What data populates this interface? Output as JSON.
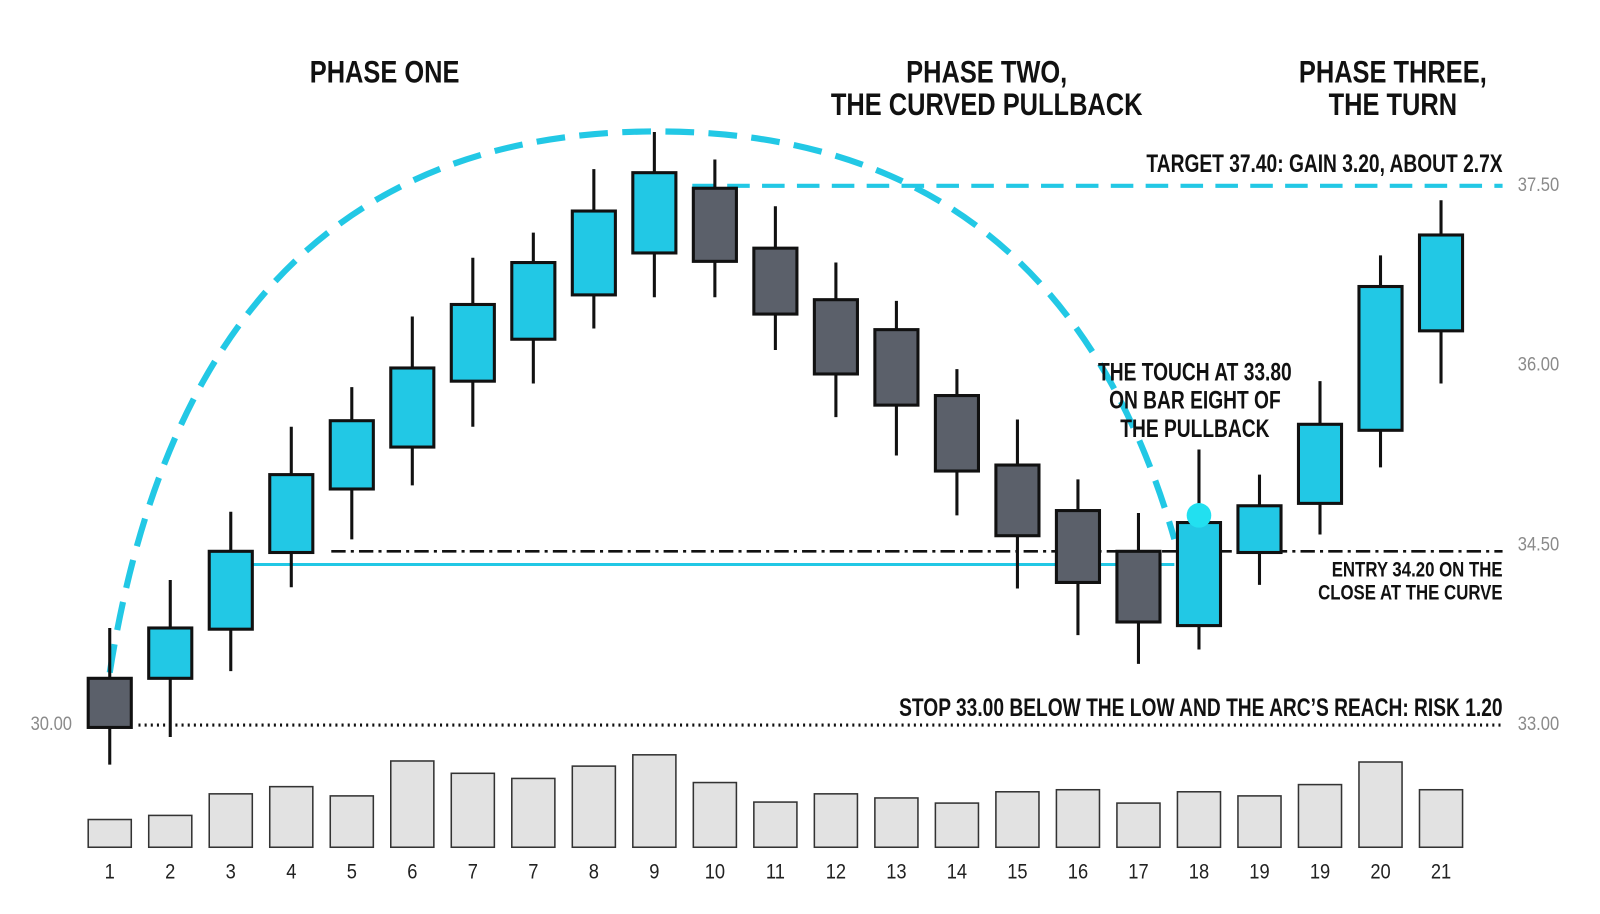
{
  "chart_data": {
    "type": "candlestick",
    "categories": [
      "1",
      "2",
      "3",
      "4",
      "5",
      "6",
      "7",
      "7",
      "8",
      "9",
      "10",
      "11",
      "12",
      "13",
      "14",
      "15",
      "16",
      "17",
      "18",
      "19",
      "19",
      "20",
      "21"
    ],
    "open": [
      33.39,
      33.39,
      33.8,
      34.44,
      34.97,
      35.32,
      35.87,
      36.22,
      36.59,
      36.94,
      37.48,
      36.98,
      36.55,
      36.3,
      35.75,
      35.17,
      34.79,
      34.45,
      33.83,
      34.44,
      34.85,
      35.46,
      36.29
    ],
    "high": [
      33.81,
      34.21,
      34.78,
      35.49,
      35.82,
      36.41,
      36.9,
      37.11,
      37.64,
      37.95,
      37.72,
      37.33,
      36.86,
      36.54,
      35.97,
      35.55,
      35.05,
      34.77,
      35.3,
      35.09,
      35.87,
      36.92,
      37.38
    ],
    "low": [
      32.67,
      32.9,
      33.45,
      34.15,
      34.55,
      35.0,
      35.49,
      35.85,
      36.31,
      36.57,
      36.57,
      36.13,
      35.57,
      35.25,
      34.75,
      34.14,
      33.75,
      33.51,
      33.63,
      34.17,
      34.59,
      35.15,
      35.85
    ],
    "close": [
      32.98,
      33.81,
      34.45,
      35.09,
      35.54,
      35.98,
      36.51,
      36.86,
      37.29,
      37.61,
      36.87,
      36.43,
      35.93,
      35.67,
      35.12,
      34.58,
      34.19,
      33.86,
      34.69,
      34.83,
      35.51,
      36.66,
      37.09
    ],
    "volume": [
      27,
      31,
      52,
      59,
      50,
      84,
      72,
      67,
      79,
      90,
      63,
      44,
      52,
      48,
      43,
      54,
      56,
      43,
      54,
      50,
      61,
      83,
      56
    ],
    "up_color": "#22c8e5",
    "down_color": "#5b606a",
    "volume_color": "#e2e2e2",
    "ylim": [
      32.4,
      38.2
    ],
    "yticks": [
      {
        "value": 33,
        "label": "33.00"
      },
      {
        "value": 34.5,
        "label": "34.50"
      },
      {
        "value": 36,
        "label": "36.00"
      },
      {
        "value": 37.5,
        "label": "37.50"
      }
    ],
    "y_left_label": "30.00",
    "touch_point": 34.75,
    "levels": [
      {
        "value": 37.5,
        "color": "#22c8e5",
        "style": "dashed"
      },
      {
        "value": 34.45,
        "color": "#111111",
        "style": "dashdot"
      },
      {
        "value": 34.34,
        "color": "#22c8e5",
        "style": "solid"
      },
      {
        "value": 33.0,
        "color": "#111111",
        "style": "dotted"
      }
    ],
    "phases": [
      [
        "PHASE ONE"
      ],
      [
        "PHASE TWO,",
        "THE CURVED PULLBACK"
      ],
      [
        "PHASE THREE,",
        "THE TURN"
      ]
    ],
    "annotations": {
      "target": [
        "TARGET 37.40: GAIN 3.20, ABOUT 2.7X"
      ],
      "touch": [
        "THE TOUCH AT 33.80",
        "ON BAR EIGHT OF",
        "THE PULLBACK"
      ],
      "entry": [
        "ENTRY 34.20 ON THE",
        "CLOSE AT THE CURVE"
      ],
      "stop": [
        "STOP 33.00 BELOW THE LOW AND THE ARC’S REACH: RISK 1.20"
      ]
    }
  }
}
